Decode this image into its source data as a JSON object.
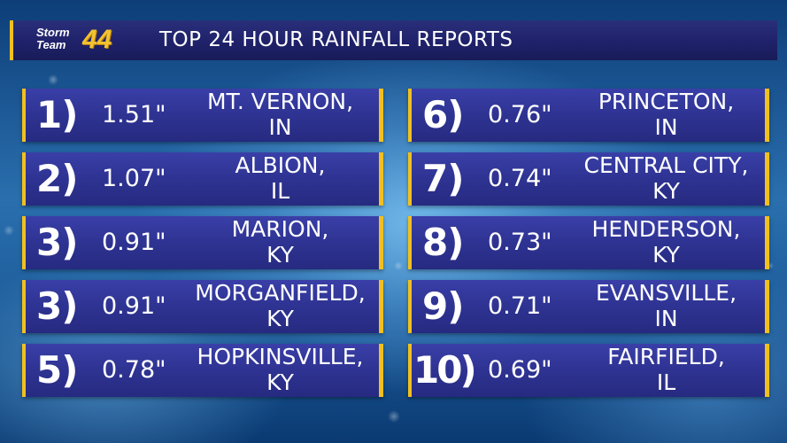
{
  "branding": {
    "logo_line1": "Storm",
    "logo_line2": "Team",
    "logo_number": "44",
    "accent_color": "#f0c020",
    "panel_color": "#2f3494"
  },
  "header": {
    "title": "TOP 24 HOUR RAINFALL REPORTS"
  },
  "reports": [
    {
      "rank": "1)",
      "amount": "1.51\"",
      "city": "MT. VERNON,",
      "state": "IN"
    },
    {
      "rank": "2)",
      "amount": "1.07\"",
      "city": "ALBION,",
      "state": "IL"
    },
    {
      "rank": "3)",
      "amount": "0.91\"",
      "city": "MARION,",
      "state": "KY"
    },
    {
      "rank": "3)",
      "amount": "0.91\"",
      "city": "MORGANFIELD,",
      "state": "KY"
    },
    {
      "rank": "5)",
      "amount": "0.78\"",
      "city": "HOPKINSVILLE,",
      "state": "KY"
    },
    {
      "rank": "6)",
      "amount": "0.76\"",
      "city": "PRINCETON,",
      "state": "IN"
    },
    {
      "rank": "7)",
      "amount": "0.74\"",
      "city": "CENTRAL CITY,",
      "state": "KY"
    },
    {
      "rank": "8)",
      "amount": "0.73\"",
      "city": "HENDERSON,",
      "state": "KY"
    },
    {
      "rank": "9)",
      "amount": "0.71\"",
      "city": "EVANSVILLE,",
      "state": "IN"
    },
    {
      "rank": "10)",
      "amount": "0.69\"",
      "city": "FAIRFIELD,",
      "state": "IL"
    }
  ]
}
